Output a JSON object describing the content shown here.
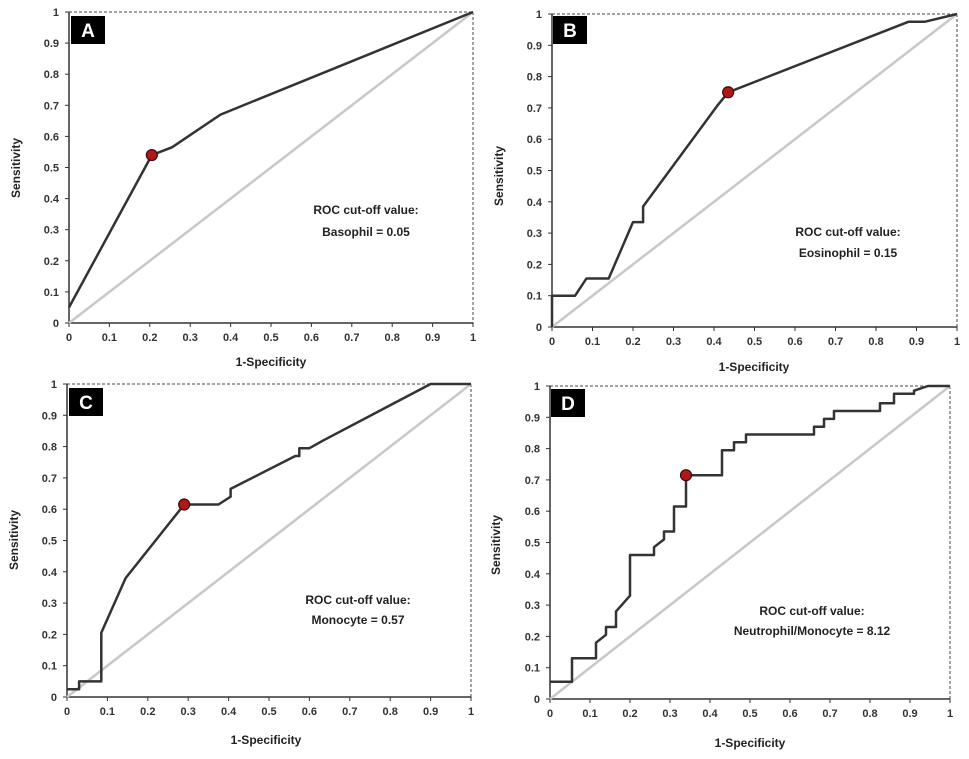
{
  "chart_data": [
    {
      "type": "line",
      "panel_label": "A",
      "xlabel": "1-Specificity",
      "ylabel": "Sensitivity",
      "xlim": [
        0,
        1
      ],
      "ylim": [
        0,
        1
      ],
      "x_ticks": [
        "0",
        "0.1",
        "0.2",
        "0.3",
        "0.4",
        "0.5",
        "0.6",
        "0.7",
        "0.8",
        "0.9",
        "1"
      ],
      "y_ticks": [
        "0",
        "0.1",
        "0.2",
        "0.3",
        "0.4",
        "0.5",
        "0.6",
        "0.7",
        "0.8",
        "0.9",
        "1"
      ],
      "reference_line": [
        [
          0,
          0
        ],
        [
          1,
          1
        ]
      ],
      "series": [
        {
          "name": "ROC",
          "points": [
            [
              0,
              0.05
            ],
            [
              0.205,
              0.54
            ],
            [
              0.255,
              0.565
            ],
            [
              0.375,
              0.67
            ],
            [
              1,
              1
            ]
          ]
        }
      ],
      "cutoff_point": [
        0.205,
        0.54
      ],
      "annotation": [
        "ROC cut-off value:",
        "Basophil = 0.05"
      ]
    },
    {
      "type": "line",
      "panel_label": "B",
      "xlabel": "1-Specificity",
      "ylabel": "Sensitivity",
      "xlim": [
        0,
        1
      ],
      "ylim": [
        0,
        1
      ],
      "x_ticks": [
        "0",
        "0.1",
        "0.2",
        "0.3",
        "0.4",
        "0.5",
        "0.6",
        "0.7",
        "0.8",
        "0.9",
        "1"
      ],
      "y_ticks": [
        "0",
        "0.1",
        "0.2",
        "0.3",
        "0.4",
        "0.5",
        "0.6",
        "0.7",
        "0.8",
        "0.9",
        "1"
      ],
      "reference_line": [
        [
          0,
          0
        ],
        [
          1,
          1
        ]
      ],
      "series": [
        {
          "name": "ROC",
          "points": [
            [
              0,
              0
            ],
            [
              0,
              0.1
            ],
            [
              0.057,
              0.1
            ],
            [
              0.085,
              0.155
            ],
            [
              0.14,
              0.155
            ],
            [
              0.2,
              0.335
            ],
            [
              0.225,
              0.335
            ],
            [
              0.225,
              0.385
            ],
            [
              0.41,
              0.71
            ],
            [
              0.435,
              0.75
            ],
            [
              0.88,
              0.975
            ],
            [
              0.92,
              0.975
            ],
            [
              1,
              1
            ]
          ]
        }
      ],
      "cutoff_point": [
        0.435,
        0.75
      ],
      "annotation": [
        "ROC cut-off value:",
        "Eosinophil = 0.15"
      ]
    },
    {
      "type": "line",
      "panel_label": "C",
      "xlabel": "1-Specificity",
      "ylabel": "Sensitivity",
      "xlim": [
        0,
        1
      ],
      "ylim": [
        0,
        1
      ],
      "x_ticks": [
        "0",
        "0.1",
        "0.2",
        "0.3",
        "0.4",
        "0.5",
        "0.6",
        "0.7",
        "0.8",
        "0.9",
        "1"
      ],
      "y_ticks": [
        "0",
        "0.1",
        "0.2",
        "0.3",
        "0.4",
        "0.5",
        "0.6",
        "0.7",
        "0.8",
        "0.9",
        "1"
      ],
      "reference_line": [
        [
          0,
          0
        ],
        [
          1,
          1
        ]
      ],
      "series": [
        {
          "name": "ROC",
          "points": [
            [
              0,
              0.025
            ],
            [
              0.03,
              0.025
            ],
            [
              0.03,
              0.05
            ],
            [
              0.085,
              0.05
            ],
            [
              0.085,
              0.205
            ],
            [
              0.145,
              0.38
            ],
            [
              0.29,
              0.615
            ],
            [
              0.375,
              0.615
            ],
            [
              0.405,
              0.64
            ],
            [
              0.405,
              0.665
            ],
            [
              0.565,
              0.77
            ],
            [
              0.575,
              0.77
            ],
            [
              0.575,
              0.795
            ],
            [
              0.6,
              0.795
            ],
            [
              0.635,
              0.82
            ],
            [
              0.9,
              1
            ],
            [
              1,
              1
            ]
          ]
        }
      ],
      "cutoff_point": [
        0.29,
        0.615
      ],
      "annotation": [
        "ROC cut-off value:",
        "Monocyte = 0.57"
      ]
    },
    {
      "type": "line",
      "panel_label": "D",
      "xlabel": "1-Specificity",
      "ylabel": "Sensitivity",
      "xlim": [
        0,
        1
      ],
      "ylim": [
        0,
        1
      ],
      "x_ticks": [
        "0",
        "0.1",
        "0.2",
        "0.3",
        "0.4",
        "0.5",
        "0.6",
        "0.7",
        "0.8",
        "0.9",
        "1"
      ],
      "y_ticks": [
        "0",
        "0.1",
        "0.2",
        "0.3",
        "0.4",
        "0.5",
        "0.6",
        "0.7",
        "0.8",
        "0.9",
        "1"
      ],
      "reference_line": [
        [
          0,
          0
        ],
        [
          1,
          1
        ]
      ],
      "series": [
        {
          "name": "ROC",
          "points": [
            [
              0,
              0.055
            ],
            [
              0.055,
              0.055
            ],
            [
              0.055,
              0.13
            ],
            [
              0.115,
              0.13
            ],
            [
              0.115,
              0.18
            ],
            [
              0.14,
              0.205
            ],
            [
              0.14,
              0.23
            ],
            [
              0.165,
              0.23
            ],
            [
              0.165,
              0.28
            ],
            [
              0.2,
              0.33
            ],
            [
              0.2,
              0.46
            ],
            [
              0.26,
              0.46
            ],
            [
              0.26,
              0.485
            ],
            [
              0.285,
              0.51
            ],
            [
              0.285,
              0.535
            ],
            [
              0.31,
              0.535
            ],
            [
              0.31,
              0.615
            ],
            [
              0.34,
              0.615
            ],
            [
              0.34,
              0.715
            ],
            [
              0.43,
              0.715
            ],
            [
              0.43,
              0.795
            ],
            [
              0.46,
              0.795
            ],
            [
              0.46,
              0.82
            ],
            [
              0.49,
              0.82
            ],
            [
              0.49,
              0.845
            ],
            [
              0.66,
              0.845
            ],
            [
              0.66,
              0.87
            ],
            [
              0.685,
              0.87
            ],
            [
              0.685,
              0.895
            ],
            [
              0.71,
              0.895
            ],
            [
              0.71,
              0.92
            ],
            [
              0.825,
              0.92
            ],
            [
              0.825,
              0.945
            ],
            [
              0.86,
              0.945
            ],
            [
              0.86,
              0.975
            ],
            [
              0.91,
              0.975
            ],
            [
              0.91,
              0.985
            ],
            [
              0.945,
              1
            ],
            [
              1,
              1
            ]
          ]
        }
      ],
      "cutoff_point": [
        0.34,
        0.715
      ],
      "annotation": [
        "ROC cut-off value:",
        "Neutrophil/Monocyte = 8.12"
      ]
    }
  ],
  "colors": {
    "roc_line": "#333333",
    "reference_line": "#c8c8c8",
    "axis": "#333333",
    "frame": "#444444",
    "cutoff_fill": "#b01818",
    "cutoff_stroke": "#3a0a0a",
    "label_box": "#000000",
    "label_text": "#ffffff"
  }
}
